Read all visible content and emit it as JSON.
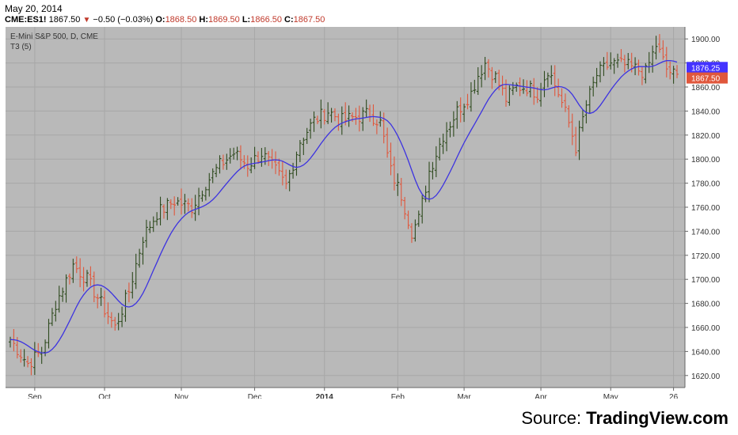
{
  "header": {
    "date": "May 20, 2014",
    "symbol": "CME:ES1!",
    "last": "1867.50",
    "change": "−0.50 (−0.03%)",
    "open_label": "O:",
    "open": "1868.50",
    "high_label": "H:",
    "high": "1869.50",
    "low_label": "L:",
    "low": "1866.50",
    "close_label": "C:",
    "close": "1867.50"
  },
  "source": {
    "prefix": "Source:",
    "name": "TradingView.com"
  },
  "colors": {
    "up": "#2e4a1e",
    "down": "#e0573c",
    "t3": "#3d33e0",
    "panel": "#b9b9b9",
    "grid": "#a7a7a7"
  },
  "chart_data": {
    "type": "ohlc",
    "title": "E-Mini S&P 500, D, CME",
    "indicator": "T3 (5)",
    "ylim": [
      1610,
      1910
    ],
    "yticks": [
      1620,
      1640,
      1660,
      1680,
      1700,
      1720,
      1740,
      1760,
      1780,
      1800,
      1820,
      1840,
      1860,
      1880,
      1900
    ],
    "xticks": [
      {
        "label": "Sep",
        "index": 7,
        "bold": false
      },
      {
        "label": "Oct",
        "index": 27,
        "bold": false
      },
      {
        "label": "Nov",
        "index": 49,
        "bold": false
      },
      {
        "label": "Dec",
        "index": 70,
        "bold": false
      },
      {
        "label": "2014",
        "index": 90,
        "bold": true
      },
      {
        "label": "Feb",
        "index": 111,
        "bold": false
      },
      {
        "label": "Mar",
        "index": 130,
        "bold": false
      },
      {
        "label": "Apr",
        "index": 152,
        "bold": false
      },
      {
        "label": "May",
        "index": 172,
        "bold": false
      },
      {
        "label": "26",
        "index": 190,
        "bold": false
      }
    ],
    "t3_last": "1876.25",
    "close_last": "1867.50",
    "anchors": [
      [
        0,
        1650
      ],
      [
        5,
        1630
      ],
      [
        9,
        1640
      ],
      [
        13,
        1680
      ],
      [
        18,
        1712
      ],
      [
        22,
        1700
      ],
      [
        26,
        1680
      ],
      [
        30,
        1660
      ],
      [
        34,
        1690
      ],
      [
        38,
        1735
      ],
      [
        42,
        1755
      ],
      [
        47,
        1765
      ],
      [
        52,
        1760
      ],
      [
        56,
        1780
      ],
      [
        60,
        1795
      ],
      [
        64,
        1805
      ],
      [
        68,
        1795
      ],
      [
        72,
        1805
      ],
      [
        76,
        1790
      ],
      [
        79,
        1778
      ],
      [
        83,
        1815
      ],
      [
        87,
        1832
      ],
      [
        91,
        1840
      ],
      [
        95,
        1832
      ],
      [
        99,
        1835
      ],
      [
        103,
        1838
      ],
      [
        106,
        1830
      ],
      [
        109,
        1790
      ],
      [
        112,
        1770
      ],
      [
        115,
        1740
      ],
      [
        117,
        1750
      ],
      [
        120,
        1790
      ],
      [
        124,
        1820
      ],
      [
        128,
        1840
      ],
      [
        132,
        1855
      ],
      [
        134,
        1870
      ],
      [
        136,
        1880
      ],
      [
        139,
        1868
      ],
      [
        142,
        1850
      ],
      [
        145,
        1860
      ],
      [
        148,
        1860
      ],
      [
        151,
        1855
      ],
      [
        154,
        1875
      ],
      [
        157,
        1855
      ],
      [
        160,
        1830
      ],
      [
        162,
        1810
      ],
      [
        165,
        1845
      ],
      [
        168,
        1870
      ],
      [
        172,
        1880
      ],
      [
        176,
        1878
      ],
      [
        179,
        1875
      ],
      [
        182,
        1872
      ],
      [
        185,
        1895
      ],
      [
        188,
        1875
      ],
      [
        191,
        1868
      ]
    ]
  }
}
